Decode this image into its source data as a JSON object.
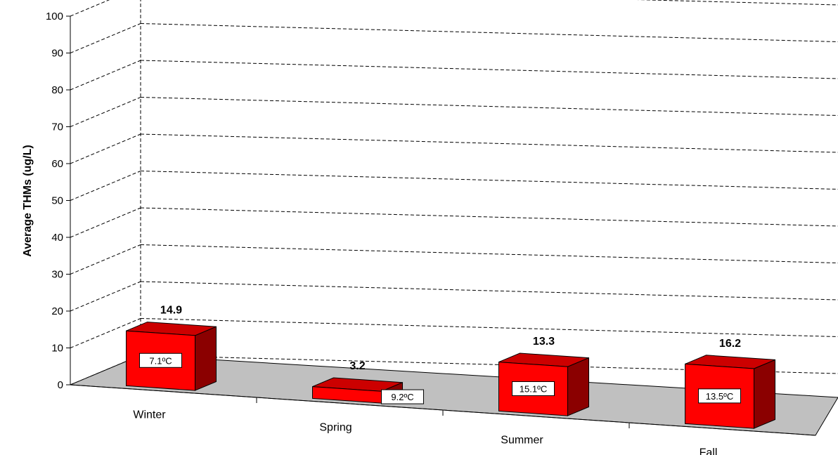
{
  "chart_data": {
    "type": "bar",
    "title": "",
    "xlabel": "",
    "ylabel": "Average THMs (ug/L)",
    "ylim": [
      0,
      100
    ],
    "y_ticks": [
      "0",
      "10",
      "20",
      "30",
      "40",
      "50",
      "60",
      "70",
      "80",
      "90",
      "100"
    ],
    "grid": true,
    "categories": [
      "Winter",
      "Spring",
      "Summer",
      "Fall"
    ],
    "values": [
      14.9,
      3.2,
      13.3,
      16.2
    ],
    "value_labels": [
      "14.9",
      "3.2",
      "13.3",
      "16.2"
    ],
    "temperature_labels": [
      "7.1ºC",
      "9.2ºC",
      "15.1ºC",
      "13.5ºC"
    ],
    "bar_color": "#ff0000",
    "floor_color": "#c0c0c0"
  }
}
